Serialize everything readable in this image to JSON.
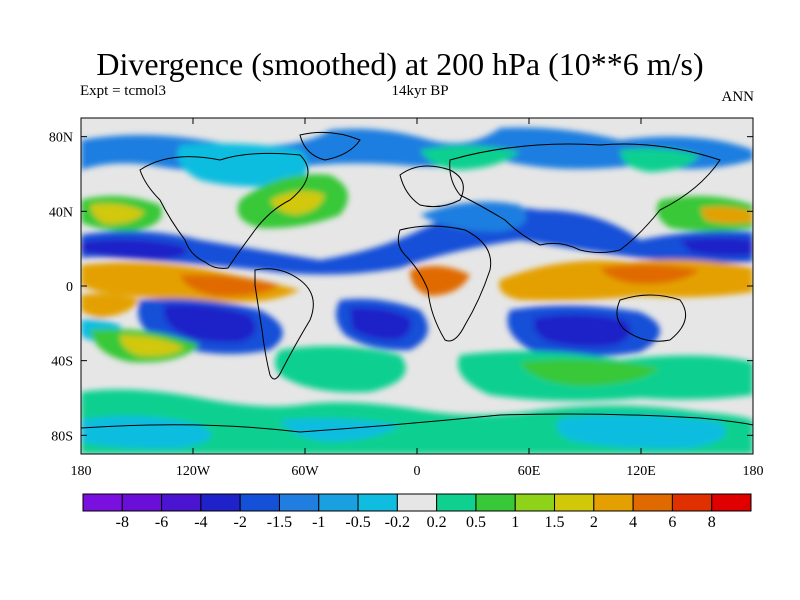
{
  "title": "Divergence (smoothed) at 200 hPa (10**6 m/s)",
  "expt_label": "Expt = tcmol3",
  "period_label": "14kyr BP",
  "season_label": "ANN",
  "lat_ticks": [
    "80N",
    "40N",
    "0",
    "40S",
    "80S"
  ],
  "lon_ticks": [
    "180",
    "120W",
    "60W",
    "0",
    "60E",
    "120E",
    "180"
  ],
  "colorbar": {
    "labels": [
      "-8",
      "-6",
      "-4",
      "-2",
      "-1.5",
      "-1",
      "-0.5",
      "-0.2",
      "0.2",
      "0.5",
      "1",
      "1.5",
      "2",
      "4",
      "6",
      "8"
    ],
    "colors": [
      "#7a10e0",
      "#6a0fd8",
      "#4a14d0",
      "#1f22c8",
      "#1550d8",
      "#1f7ee0",
      "#1aa0e0",
      "#10bde0",
      "#e6e6e6",
      "#10d090",
      "#38c838",
      "#8ed21a",
      "#d2c80a",
      "#e4a000",
      "#e06a00",
      "#e03000",
      "#e00000"
    ]
  },
  "chart_data": {
    "type": "heatmap",
    "title": "Divergence (smoothed) at 200 hPa (10**6 m/s)",
    "variable": "divergence",
    "level": "200 hPa",
    "units": "10**6 m/s",
    "period": "14kyr BP",
    "season": "ANN",
    "lon_range": [
      -180,
      180
    ],
    "lat_range": [
      -90,
      90
    ],
    "levels": [
      -8,
      -6,
      -4,
      -2,
      -1.5,
      -1,
      -0.5,
      -0.2,
      0.2,
      0.5,
      1,
      1.5,
      2,
      4,
      6,
      8
    ]
  }
}
